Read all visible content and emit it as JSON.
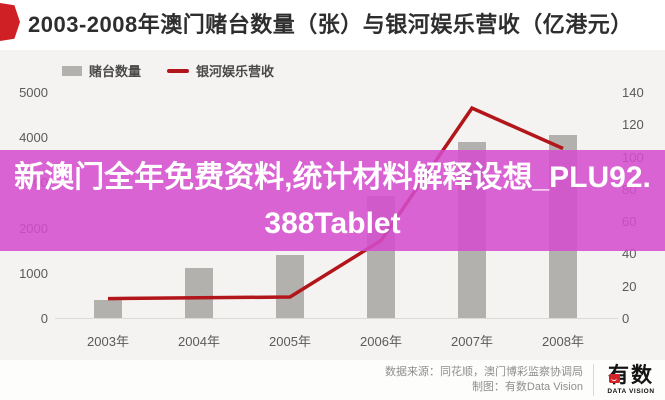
{
  "header": {
    "title": "2003-2008年澳门赌台数量（张）与银河娱乐营收（亿港元）"
  },
  "legend": {
    "bar_label": "赌台数量",
    "line_label": "银河娱乐营收"
  },
  "chart_data": {
    "type": "bar",
    "title": "2003-2008年澳门赌台数量（张）与银河娱乐营收（亿港元）",
    "categories": [
      "2003年",
      "2004年",
      "2005年",
      "2006年",
      "2007年",
      "2008年"
    ],
    "series": [
      {
        "name": "赌台数量",
        "type": "bar",
        "axis": "left",
        "color": "#b3b1ae",
        "values": [
          400,
          1100,
          1400,
          2700,
          3900,
          4050
        ]
      },
      {
        "name": "银河娱乐营收",
        "type": "line",
        "axis": "right",
        "color": "#b2161b",
        "values": [
          12,
          12.5,
          13,
          48,
          130,
          105
        ]
      }
    ],
    "left_axis": {
      "min": 0,
      "max": 5000,
      "ticks": [
        5000,
        4000,
        3000,
        2000,
        1000,
        0
      ]
    },
    "right_axis": {
      "min": 0,
      "max": 140,
      "ticks": [
        140,
        120,
        100,
        80,
        60,
        40,
        20,
        0
      ]
    },
    "grid": false,
    "legend_position": "top-left"
  },
  "overlay": {
    "text": "新澳门全年免费资料,统计材料解释设想_PLU92.388Tablet",
    "band_color": "#d44dce"
  },
  "footer": {
    "source": "数据来源：同花顺，澳门博彩监察协调局",
    "credit": "制图：有数Data Vision",
    "logo_main": "有数",
    "logo_sub": "DATA VISION"
  }
}
